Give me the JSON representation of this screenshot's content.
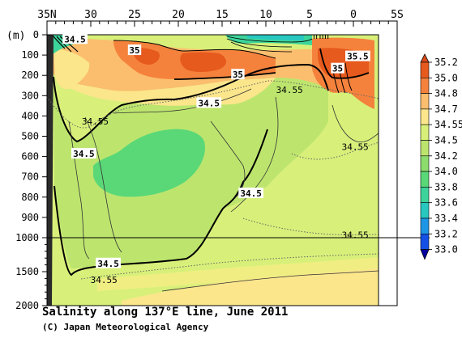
{
  "chart_data": {
    "type": "heatmap",
    "title": "Salinity along 137°E line, June 2011",
    "credit": "(C) Japan Meteorological Agency",
    "x_axis": {
      "direction": "latitude, north to south",
      "range": [
        35,
        -5
      ],
      "ticks": [
        {
          "value": 35,
          "label": "35N"
        },
        {
          "value": 30,
          "label": "30"
        },
        {
          "value": 25,
          "label": "25"
        },
        {
          "value": 20,
          "label": "20"
        },
        {
          "value": 15,
          "label": "15"
        },
        {
          "value": 10,
          "label": "10"
        },
        {
          "value": 5,
          "label": "5"
        },
        {
          "value": 0,
          "label": "0"
        },
        {
          "value": -5,
          "label": "5S"
        }
      ]
    },
    "y_axis": {
      "unit_label": "(m)",
      "upper_range": [
        0,
        1000
      ],
      "lower_range": [
        1000,
        2000
      ],
      "ticks": [
        {
          "value": 0,
          "label": "0"
        },
        {
          "value": 100,
          "label": "100"
        },
        {
          "value": 200,
          "label": "200"
        },
        {
          "value": 300,
          "label": "300"
        },
        {
          "value": 400,
          "label": "400"
        },
        {
          "value": 500,
          "label": "500"
        },
        {
          "value": 600,
          "label": "600"
        },
        {
          "value": 700,
          "label": "700"
        },
        {
          "value": 800,
          "label": "800"
        },
        {
          "value": 900,
          "label": "900"
        },
        {
          "value": 1000,
          "label": "1000"
        },
        {
          "value": 1500,
          "label": "1500"
        },
        {
          "value": 2000,
          "label": "2000"
        }
      ]
    },
    "colorbar": {
      "levels": [
        {
          "value": 35.2,
          "label": "35.2",
          "color": "#e65a1e"
        },
        {
          "value": 35.0,
          "label": "35.0",
          "color": "#f5823c"
        },
        {
          "value": 34.8,
          "label": "34.8",
          "color": "#fbbe6e"
        },
        {
          "value": 34.7,
          "label": "34.7",
          "color": "#fbe68c"
        },
        {
          "value": 34.55,
          "label": "34.55",
          "color": "#d8f07a"
        },
        {
          "value": 34.5,
          "label": "34.5",
          "color": "#bde56e"
        },
        {
          "value": 34.2,
          "label": "34.2",
          "color": "#8cdc6e"
        },
        {
          "value": 34.0,
          "label": "34.0",
          "color": "#5ad878"
        },
        {
          "value": 33.8,
          "label": "33.8",
          "color": "#3cd49a"
        },
        {
          "value": 33.6,
          "label": "33.6",
          "color": "#28c8c0"
        },
        {
          "value": 33.4,
          "label": "33.4",
          "color": "#1e96e6"
        },
        {
          "value": 33.2,
          "label": "33.2",
          "color": "#1450e6"
        },
        {
          "value": 33.0,
          "label": "33.0",
          "color": "#0a14c8"
        }
      ],
      "top_extension_color": "#d94a1a",
      "bottom_extension_color": "#0000a0"
    },
    "contour_labels": [
      {
        "text": "34.5",
        "lat": 31.8,
        "depth": 25,
        "bold": true
      },
      {
        "text": "35",
        "lat": 25.0,
        "depth": 80,
        "bold": true
      },
      {
        "text": "35",
        "lat": 13.2,
        "depth": 200,
        "bold": true
      },
      {
        "text": "35.5",
        "lat": -0.5,
        "depth": 110,
        "bold": true
      },
      {
        "text": "35",
        "lat": 1.8,
        "depth": 170,
        "bold": true
      },
      {
        "text": "34.55",
        "lat": 7.3,
        "depth": 275,
        "bold": false
      },
      {
        "text": "34.5",
        "lat": 16.5,
        "depth": 340,
        "bold": true
      },
      {
        "text": "34.55",
        "lat": 29.5,
        "depth": 430,
        "bold": false
      },
      {
        "text": "34.5",
        "lat": 30.8,
        "depth": 590,
        "bold": true
      },
      {
        "text": "34.55",
        "lat": -0.2,
        "depth": 555,
        "bold": false
      },
      {
        "text": "34.5",
        "lat": 11.7,
        "depth": 785,
        "bold": true
      },
      {
        "text": "34.55",
        "lat": -0.2,
        "depth": 990,
        "bold": false
      },
      {
        "text": "34.5",
        "lat": 28.0,
        "depth": 1390,
        "bold": true
      },
      {
        "text": "34.55",
        "lat": 28.5,
        "depth": 1630,
        "bold": false
      }
    ],
    "regions": [
      {
        "name": "deep water below 1000 m",
        "range": "34.5-34.7",
        "color": "#d8f07a"
      },
      {
        "name": "intermediate water minimum",
        "lat": [
          29,
          18
        ],
        "depth": [
          550,
          850
        ],
        "range": "34.0-34.2",
        "color": "#5ad878"
      },
      {
        "name": "subtropical high-salinity core",
        "lat": [
          27,
          11
        ],
        "depth": [
          50,
          230
        ],
        "range": "above 35.0",
        "color": "#f5823c"
      },
      {
        "name": "equatorial high-salinity core",
        "lat": [
          3,
          -1
        ],
        "depth": [
          50,
          280
        ],
        "range": "above 35.2",
        "color": "#e65a1e"
      }
    ],
    "grid": false,
    "legend_placement": "right"
  }
}
